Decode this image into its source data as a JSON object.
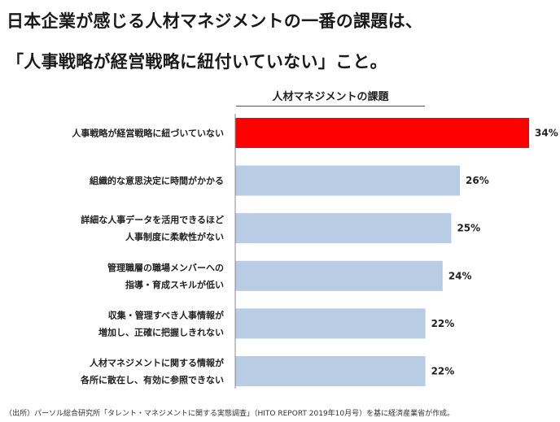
{
  "headline": {
    "line1": "日本企業が感じる人材マネジメントの一番の課題は、",
    "line2": "「人事戦略が経営戦略に紐付いていない」こと。"
  },
  "chart_data": {
    "type": "bar",
    "orientation": "horizontal",
    "title": "人材マネジメントの課題",
    "categories": [
      [
        "人事戦略が経営戦略に紐づいていない"
      ],
      [
        "組織的な意思決定に時間がかかる"
      ],
      [
        "詳細な人事データを活用できるほど",
        "人事制度に柔軟性がない"
      ],
      [
        "管理職層の職場メンバーへの",
        "指導・育成スキルが低い"
      ],
      [
        "収集・管理すべき人事情報が",
        "増加し、正確に把握しきれない"
      ],
      [
        "人材マネジメントに関する情報が",
        "各所に散在し、有効に参照できない"
      ]
    ],
    "values": [
      34,
      26,
      25,
      24,
      22,
      22
    ],
    "value_labels": [
      "34%",
      "26%",
      "25%",
      "24%",
      "22%",
      "22%"
    ],
    "highlight_index": 0,
    "colors": {
      "highlight": "#ff0000",
      "default": "#b8cce4",
      "axis": "#888888"
    },
    "grid": false,
    "legend": "none"
  },
  "footnote": "（出所）パーソル総合研究所「タレント・マネジメントに関する実態調査」（HITO REPORT 2019年10月号）を基に経済産業省が作成。"
}
